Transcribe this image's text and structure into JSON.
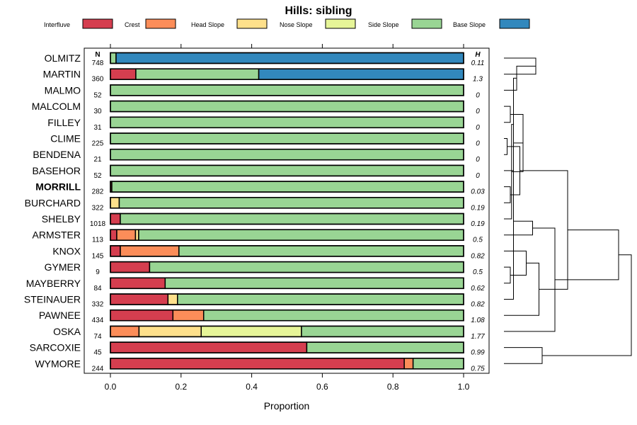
{
  "chart_data": {
    "type": "bar",
    "subtype": "stacked-horizontal-proportion",
    "title": "Hills: sibling",
    "xlabel": "Proportion",
    "ylabel": "",
    "xlim": [
      0,
      1
    ],
    "x_ticks": [
      "0.0",
      "0.2",
      "0.4",
      "0.6",
      "0.8",
      "1.0"
    ],
    "n_header": "N",
    "h_header": "H",
    "legend": [
      {
        "name": "Interfluve",
        "color": "#D53E4F"
      },
      {
        "name": "Crest",
        "color": "#FC8D59"
      },
      {
        "name": "Head Slope",
        "color": "#FEE08B"
      },
      {
        "name": "Nose Slope",
        "color": "#E6F598"
      },
      {
        "name": "Side Slope",
        "color": "#99D594"
      },
      {
        "name": "Base Slope",
        "color": "#3288BD"
      }
    ],
    "series_order": [
      "Interfluve",
      "Crest",
      "Head Slope",
      "Nose Slope",
      "Side Slope",
      "Base Slope"
    ],
    "rows": [
      {
        "name": "OLMITZ",
        "n": "748",
        "h": "0.11",
        "bold": false,
        "values": [
          0,
          0,
          0,
          0,
          0.016,
          0.984
        ]
      },
      {
        "name": "MARTIN",
        "n": "360",
        "h": "1.3",
        "bold": false,
        "values": [
          0.072,
          0,
          0,
          0,
          0.348,
          0.58
        ]
      },
      {
        "name": "MALMO",
        "n": "52",
        "h": "0",
        "bold": false,
        "values": [
          0,
          0,
          0,
          0,
          1,
          0
        ]
      },
      {
        "name": "MALCOLM",
        "n": "30",
        "h": "0",
        "bold": false,
        "values": [
          0,
          0,
          0,
          0,
          1,
          0
        ]
      },
      {
        "name": "FILLEY",
        "n": "31",
        "h": "0",
        "bold": false,
        "values": [
          0,
          0,
          0,
          0,
          1,
          0
        ]
      },
      {
        "name": "CLIME",
        "n": "225",
        "h": "0",
        "bold": false,
        "values": [
          0,
          0,
          0,
          0,
          1,
          0
        ]
      },
      {
        "name": "BENDENA",
        "n": "21",
        "h": "0",
        "bold": false,
        "values": [
          0,
          0,
          0,
          0,
          1,
          0
        ]
      },
      {
        "name": "BASEHOR",
        "n": "52",
        "h": "0",
        "bold": false,
        "values": [
          0,
          0,
          0,
          0,
          1,
          0
        ]
      },
      {
        "name": "MORRILL",
        "n": "282",
        "h": "0.03",
        "bold": true,
        "values": [
          0.004,
          0,
          0,
          0,
          0.996,
          0
        ]
      },
      {
        "name": "BURCHARD",
        "n": "322",
        "h": "0.19",
        "bold": false,
        "values": [
          0,
          0,
          0.025,
          0,
          0.975,
          0
        ]
      },
      {
        "name": "SHELBY",
        "n": "1018",
        "h": "0.19",
        "bold": false,
        "values": [
          0.028,
          0,
          0,
          0,
          0.972,
          0
        ]
      },
      {
        "name": "ARMSTER",
        "n": "113",
        "h": "0.5",
        "bold": false,
        "values": [
          0.018,
          0.053,
          0.009,
          0,
          0.92,
          0
        ]
      },
      {
        "name": "KNOX",
        "n": "145",
        "h": "0.82",
        "bold": false,
        "values": [
          0.028,
          0.166,
          0,
          0,
          0.806,
          0
        ]
      },
      {
        "name": "GYMER",
        "n": "9",
        "h": "0.5",
        "bold": false,
        "values": [
          0.111,
          0,
          0,
          0,
          0.889,
          0
        ]
      },
      {
        "name": "MAYBERRY",
        "n": "84",
        "h": "0.62",
        "bold": false,
        "values": [
          0.155,
          0,
          0,
          0,
          0.845,
          0
        ]
      },
      {
        "name": "STEINAUER",
        "n": "332",
        "h": "0.82",
        "bold": false,
        "values": [
          0.163,
          0,
          0.027,
          0,
          0.81,
          0
        ]
      },
      {
        "name": "PAWNEE",
        "n": "434",
        "h": "1.08",
        "bold": false,
        "values": [
          0.177,
          0.087,
          0,
          0,
          0.736,
          0
        ]
      },
      {
        "name": "OSKA",
        "n": "74",
        "h": "1.77",
        "bold": false,
        "values": [
          0,
          0.081,
          0.176,
          0.284,
          0.459,
          0
        ]
      },
      {
        "name": "SARCOXIE",
        "n": "45",
        "h": "0.99",
        "bold": false,
        "values": [
          0.556,
          0,
          0,
          0,
          0.444,
          0
        ]
      },
      {
        "name": "WYMORE",
        "n": "244",
        "h": "0.75",
        "bold": false,
        "values": [
          0.832,
          0.025,
          0,
          0,
          0.143,
          0
        ]
      }
    ],
    "dendrogram": [
      [
        0,
        1,
        0.5
      ],
      [
        3,
        4,
        0.1
      ],
      [
        2,
        20,
        0.2
      ],
      [
        5,
        6,
        0.05
      ],
      [
        7,
        22,
        0.15
      ],
      [
        8,
        9,
        0.1
      ],
      [
        10,
        24,
        0.12
      ],
      [
        23,
        25,
        0.25
      ],
      [
        21,
        26,
        0.3
      ],
      [
        13,
        14,
        0.1
      ],
      [
        15,
        28,
        0.15
      ],
      [
        12,
        29,
        0.35
      ],
      [
        11,
        30,
        0.45
      ],
      [
        16,
        31,
        0.55
      ],
      [
        17,
        32,
        0.8
      ],
      [
        27,
        33,
        1.0
      ],
      [
        18,
        19,
        0.6
      ],
      [
        34,
        35,
        1.8
      ],
      [
        36,
        37,
        2.0
      ]
    ]
  }
}
